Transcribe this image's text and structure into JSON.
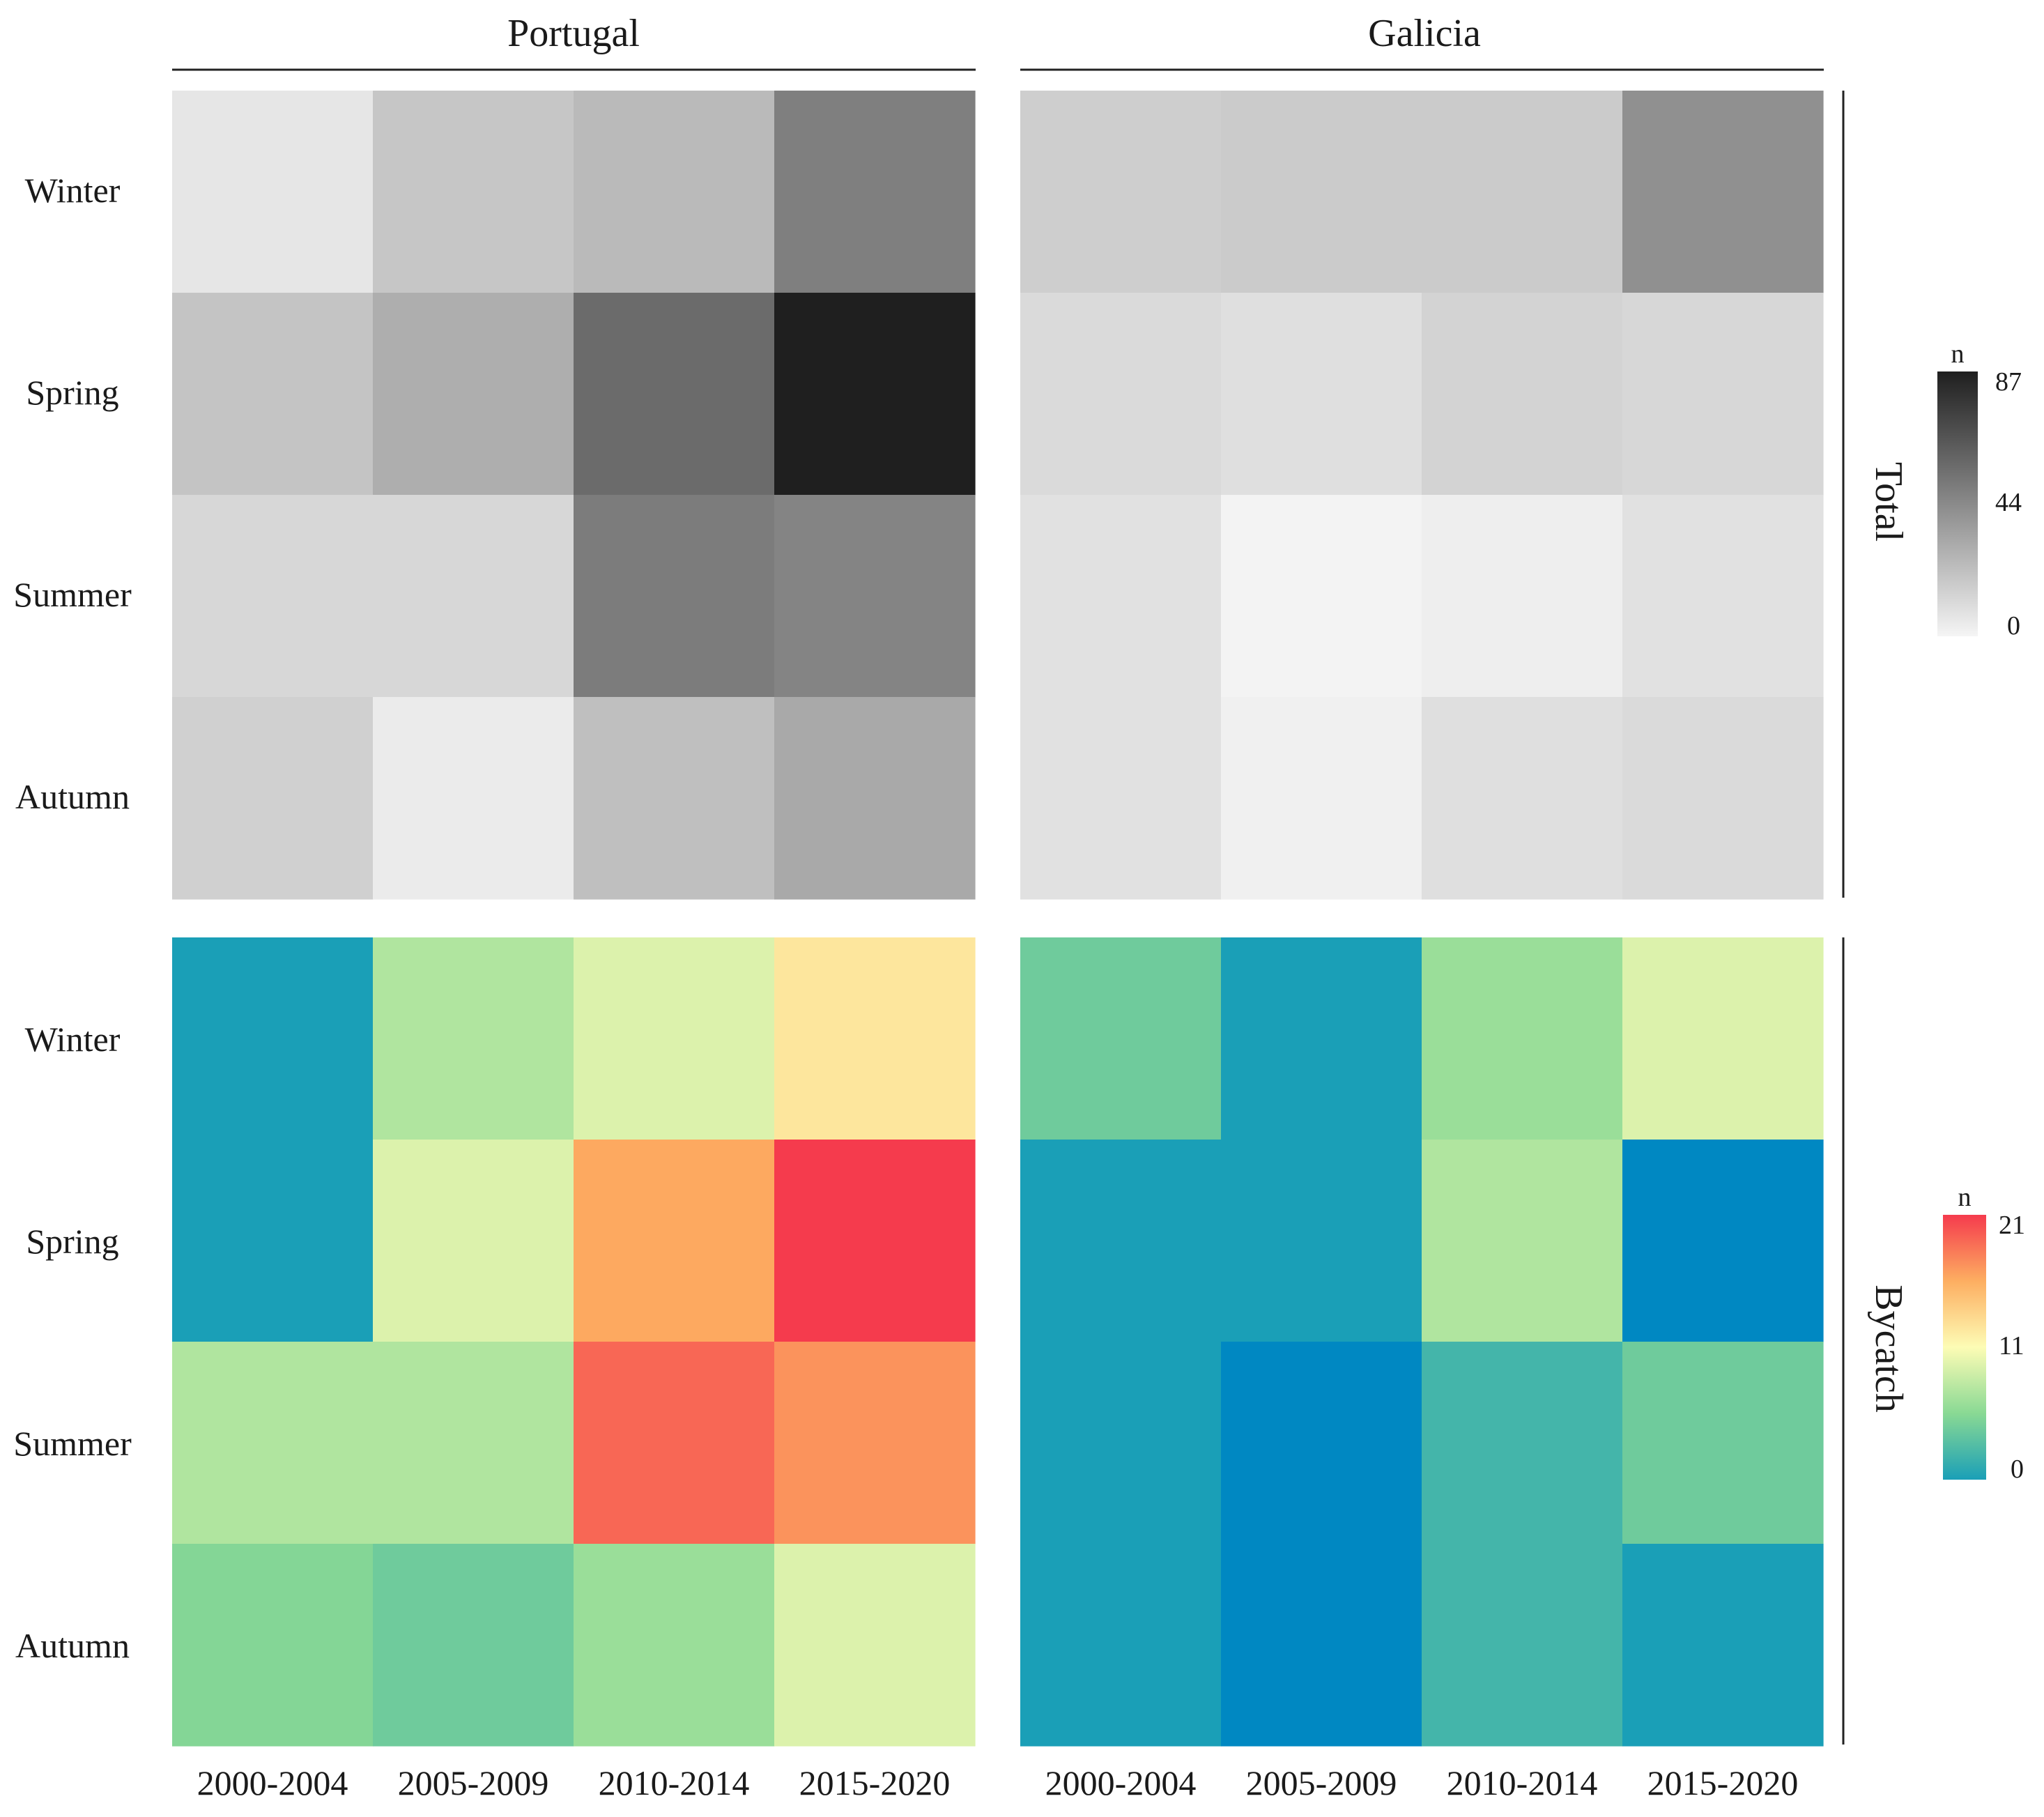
{
  "chart_data": {
    "type": "heatmap",
    "column_facets": [
      "Portugal",
      "Galicia"
    ],
    "row_facets": [
      "Total",
      "Bycatch"
    ],
    "y_categories": [
      "Winter",
      "Spring",
      "Summer",
      "Autumn"
    ],
    "x_categories": [
      "2000-2004",
      "2005-2009",
      "2010-2014",
      "2015-2020"
    ],
    "panels": [
      {
        "row": "Total",
        "column": "Portugal",
        "values": [
          [
            6,
            19,
            24,
            48
          ],
          [
            20,
            29,
            56,
            87
          ],
          [
            12,
            12,
            49,
            46
          ],
          [
            15,
            4,
            22,
            31
          ]
        ]
      },
      {
        "row": "Total",
        "column": "Galicia",
        "values": [
          [
            16,
            17,
            17,
            41
          ],
          [
            11,
            9,
            14,
            12
          ],
          [
            8,
            1,
            3,
            8
          ],
          [
            8,
            2,
            9,
            11
          ]
        ]
      },
      {
        "row": "Bycatch",
        "column": "Portugal",
        "values": [
          [
            0,
            7,
            9,
            12
          ],
          [
            0,
            9,
            16,
            21
          ],
          [
            7,
            7,
            19,
            17
          ],
          [
            5,
            4,
            6,
            9
          ]
        ]
      },
      {
        "row": "Bycatch",
        "column": "Galicia",
        "values": [
          [
            4,
            0,
            6,
            9
          ],
          [
            0,
            0,
            7,
            -1
          ],
          [
            0,
            -1,
            2,
            4
          ],
          [
            0,
            -1,
            2,
            0
          ]
        ]
      }
    ],
    "legends": [
      {
        "row": "Total",
        "title": "n",
        "scale": "greys",
        "min": 0,
        "max": 87,
        "ticks": [
          "87",
          "44",
          "0"
        ],
        "low_color": "#f5f5f5",
        "high_color": "#1f1f1f"
      },
      {
        "row": "Bycatch",
        "title": "n",
        "scale": "spectral",
        "min": 0,
        "max": 21,
        "ticks": [
          "21",
          "11",
          "0"
        ],
        "stops": [
          "#1a9fb7",
          "#89d994",
          "#fdfcb5",
          "#fdae61",
          "#f53b4d"
        ]
      }
    ]
  }
}
